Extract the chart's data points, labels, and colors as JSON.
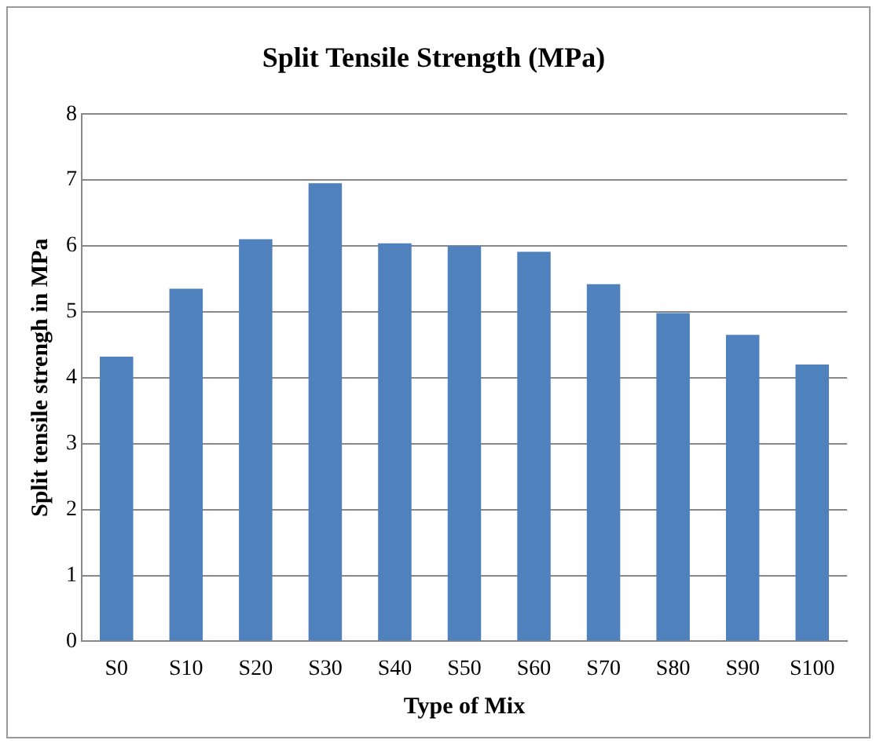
{
  "chart_data": {
    "type": "bar",
    "title": "Split Tensile Strength (MPa)",
    "xlabel": "Type of Mix",
    "ylabel": "Split tensile strengh in MPa",
    "categories": [
      "S0",
      "S10",
      "S20",
      "S30",
      "S40",
      "S50",
      "S60",
      "S70",
      "S80",
      "S90",
      "S100"
    ],
    "values": [
      4.32,
      5.35,
      6.1,
      6.95,
      6.04,
      6.0,
      5.91,
      5.42,
      4.98,
      4.65,
      4.2
    ],
    "color": "#4f81bd",
    "ylim": [
      0,
      8
    ],
    "yticks": [
      0,
      1,
      2,
      3,
      4,
      5,
      6,
      7,
      8
    ],
    "grid": "y",
    "legend": false
  }
}
